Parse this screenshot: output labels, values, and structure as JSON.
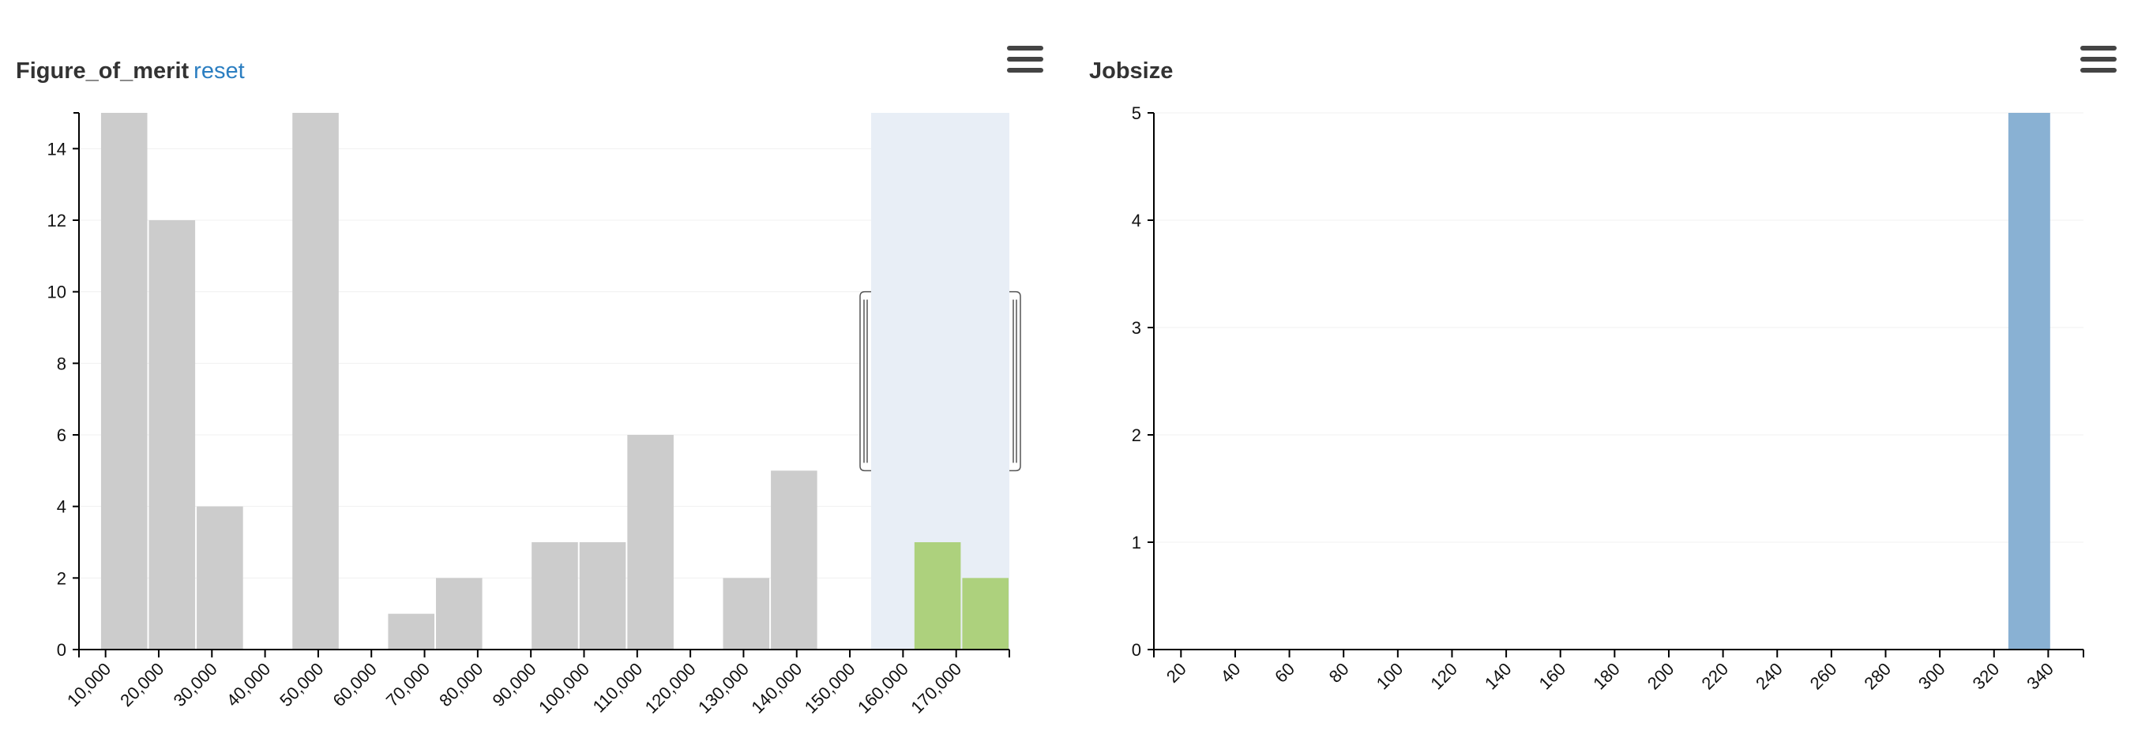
{
  "panels": {
    "left": {
      "title": "Figure_of_merit",
      "reset_label": "reset",
      "menu_icon": "hamburger-menu-icon"
    },
    "right": {
      "title": "Jobsize",
      "menu_icon": "hamburger-menu-icon"
    }
  },
  "colors": {
    "bar_default": "#cccccc",
    "bar_selected": "#add17d",
    "bar_jobsize": "#89b1d3",
    "brush_fill": "#e8eef6",
    "axis": "#000000",
    "grid": "#f0f0f0",
    "reset_link": "#2b7ec1"
  },
  "chart_data": [
    {
      "type": "bar",
      "title": "Figure_of_merit",
      "xlabel": "",
      "ylabel": "",
      "x_ticks": [
        10000,
        20000,
        30000,
        40000,
        50000,
        60000,
        70000,
        80000,
        90000,
        100000,
        110000,
        120000,
        130000,
        140000,
        150000,
        160000,
        170000
      ],
      "x_tick_labels": [
        "10,000",
        "20,000",
        "30,000",
        "40,000",
        "50,000",
        "60,000",
        "70,000",
        "80,000",
        "90,000",
        "100,000",
        "110,000",
        "120,000",
        "130,000",
        "140,000",
        "150,000",
        "160,000",
        "170,000"
      ],
      "xlim": [
        5000,
        180000
      ],
      "ylim": [
        0,
        15
      ],
      "y_ticks": [
        0,
        2,
        4,
        6,
        8,
        10,
        12,
        14
      ],
      "bin_width": 9000,
      "bins": [
        {
          "x0": 9000,
          "value": 15,
          "selected": false
        },
        {
          "x0": 18000,
          "value": 12,
          "selected": false
        },
        {
          "x0": 27000,
          "value": 4,
          "selected": false
        },
        {
          "x0": 45000,
          "value": 15,
          "selected": false
        },
        {
          "x0": 63000,
          "value": 1,
          "selected": false
        },
        {
          "x0": 72000,
          "value": 2,
          "selected": false
        },
        {
          "x0": 90000,
          "value": 3,
          "selected": false
        },
        {
          "x0": 99000,
          "value": 3,
          "selected": false
        },
        {
          "x0": 108000,
          "value": 6,
          "selected": false
        },
        {
          "x0": 126000,
          "value": 2,
          "selected": false
        },
        {
          "x0": 135000,
          "value": 5,
          "selected": false
        },
        {
          "x0": 162000,
          "value": 3,
          "selected": true
        },
        {
          "x0": 171000,
          "value": 2,
          "selected": true
        }
      ],
      "brush": [
        154000,
        180000
      ],
      "grid": true,
      "legend": "none"
    },
    {
      "type": "bar",
      "title": "Jobsize",
      "xlabel": "",
      "ylabel": "",
      "x_ticks": [
        20,
        40,
        60,
        80,
        100,
        120,
        140,
        160,
        180,
        200,
        220,
        240,
        260,
        280,
        300,
        320,
        340
      ],
      "x_tick_labels": [
        "20",
        "40",
        "60",
        "80",
        "100",
        "120",
        "140",
        "160",
        "180",
        "200",
        "220",
        "240",
        "260",
        "280",
        "300",
        "320",
        "340"
      ],
      "xlim": [
        10,
        353
      ],
      "ylim": [
        0,
        5
      ],
      "y_ticks": [
        0,
        1,
        2,
        3,
        4,
        5
      ],
      "bin_width": 16,
      "bins": [
        {
          "x0": 325,
          "value": 5,
          "selected": false
        }
      ],
      "grid": true,
      "legend": "none"
    }
  ]
}
